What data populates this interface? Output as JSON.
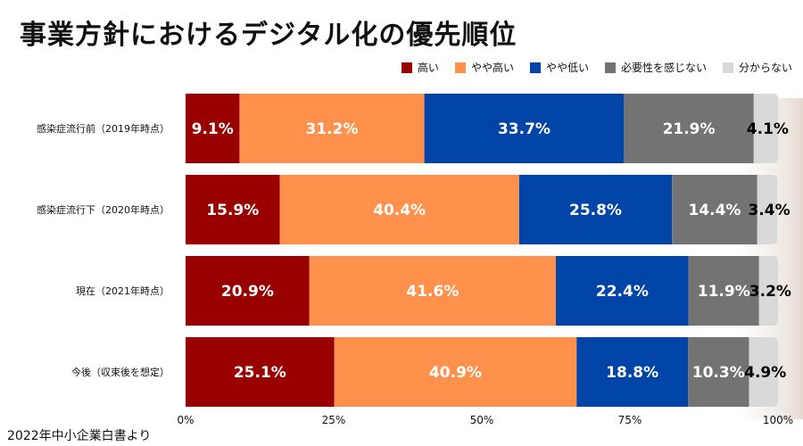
{
  "title": "事業方針におけるデジタル化の優先順位",
  "source": "2022年中小企業白書より",
  "chart_data": {
    "type": "bar",
    "orientation": "horizontal",
    "stacked": true,
    "title": "事業方針におけるデジタル化の優先順位",
    "xlabel": "",
    "ylabel": "",
    "xlim": [
      0,
      100
    ],
    "x_ticks": [
      "0%",
      "25%",
      "50%",
      "75%",
      "100%"
    ],
    "legend_position": "top-right",
    "categories": [
      "感染症流行前（2019年時点）",
      "感染症流行下（2020年時点）",
      "現在（2021年時点）",
      "今後（収束後を想定）"
    ],
    "series": [
      {
        "name": "高い",
        "color": "#990000",
        "label_color": "#ffffff",
        "values": [
          9.1,
          15.9,
          20.9,
          25.1
        ],
        "labels": [
          "9.1%",
          "15.9%",
          "20.9%",
          "25.1%"
        ]
      },
      {
        "name": "やや高い",
        "color": "#ff914d",
        "label_color": "#ffffff",
        "values": [
          31.2,
          40.4,
          41.6,
          40.9
        ],
        "labels": [
          "31.2%",
          "40.4%",
          "41.6%",
          "40.9%"
        ]
      },
      {
        "name": "やや低い",
        "color": "#0044a8",
        "label_color": "#ffffff",
        "values": [
          33.7,
          25.8,
          22.4,
          18.8
        ],
        "labels": [
          "33.7%",
          "25.8%",
          "22.4%",
          "18.8%"
        ]
      },
      {
        "name": "必要性を感じない",
        "color": "#737373",
        "label_color": "#ffffff",
        "values": [
          21.9,
          14.4,
          11.9,
          10.3
        ],
        "labels": [
          "21.9%",
          "14.4%",
          "11.9%",
          "10.3%"
        ]
      },
      {
        "name": "分からない",
        "color": "#d9d9d9",
        "label_color": "#000000",
        "values": [
          4.1,
          3.4,
          3.2,
          4.9
        ],
        "labels": [
          "4.1%",
          "3.4%",
          "3.2%",
          "4.9%"
        ]
      }
    ]
  }
}
